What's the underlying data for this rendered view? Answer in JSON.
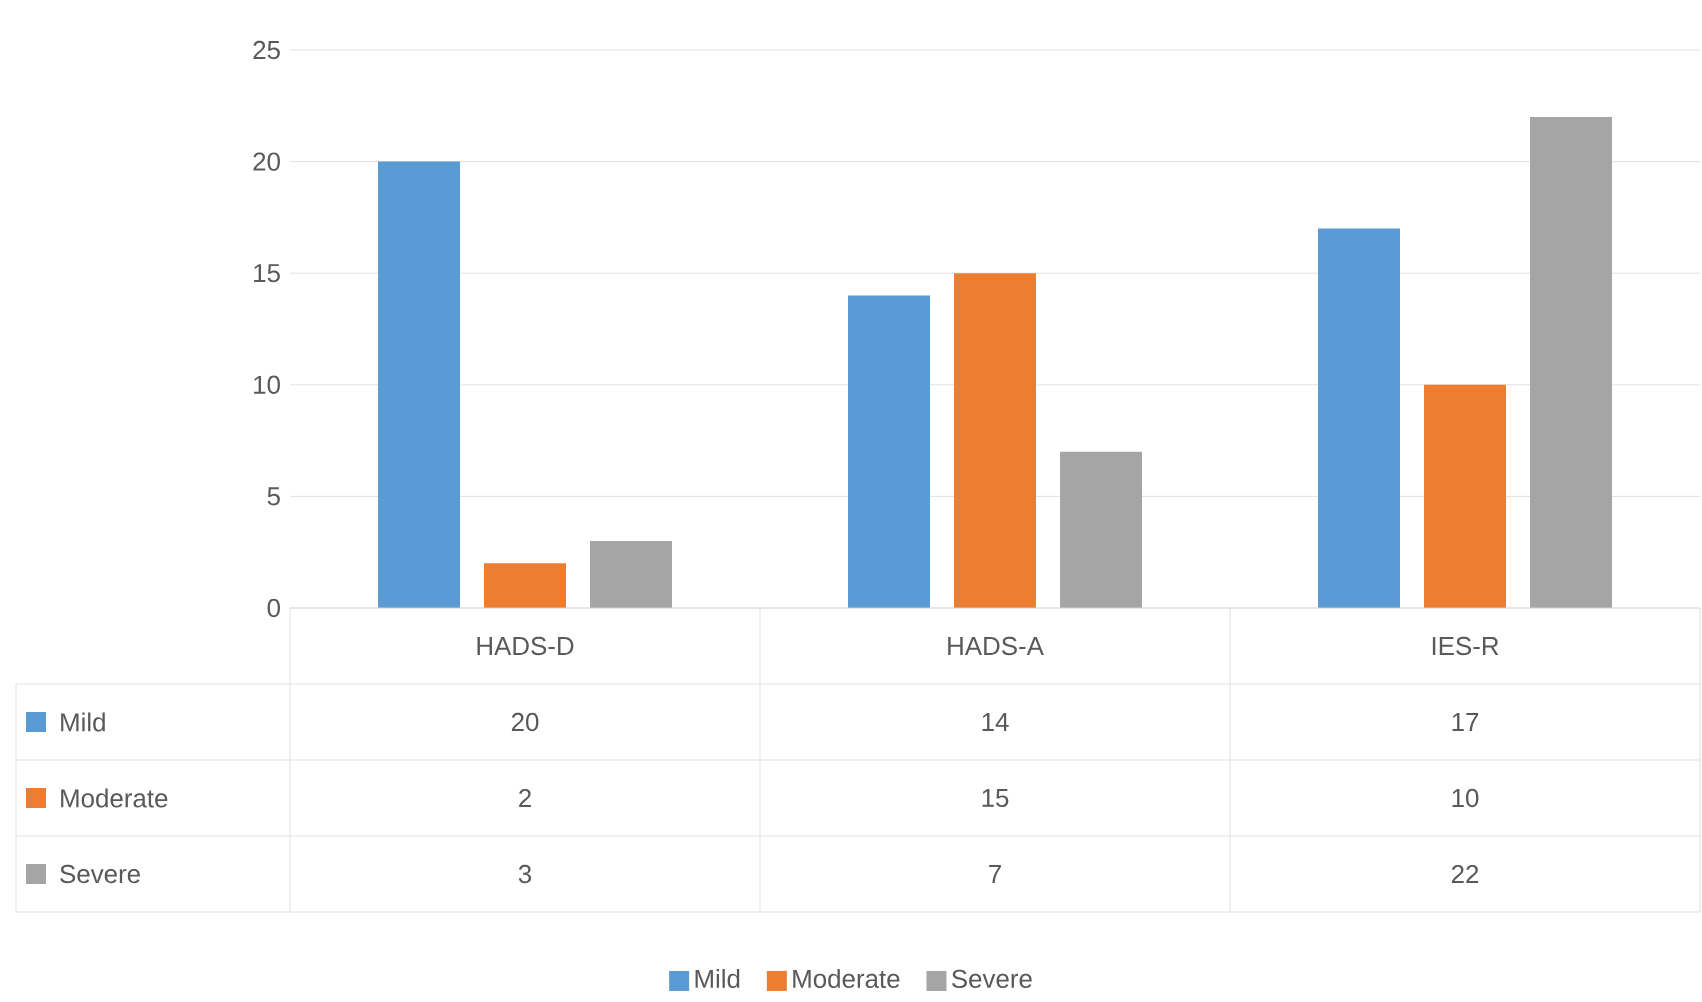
{
  "chart_data": {
    "type": "bar",
    "categories": [
      "HADS-D",
      "HADS-A",
      "IES-R"
    ],
    "series": [
      {
        "name": "Mild",
        "color": "#5b9bd5",
        "values": [
          20,
          14,
          17
        ]
      },
      {
        "name": "Moderate",
        "color": "#ed7d31",
        "values": [
          2,
          15,
          10
        ]
      },
      {
        "name": "Severe",
        "color": "#a5a5a5",
        "values": [
          3,
          7,
          22
        ]
      }
    ],
    "ylim": [
      0,
      25
    ],
    "yticks": [
      0,
      5,
      10,
      15,
      20,
      25
    ],
    "grid": "y",
    "legend": "bottom",
    "data_labels": true
  }
}
